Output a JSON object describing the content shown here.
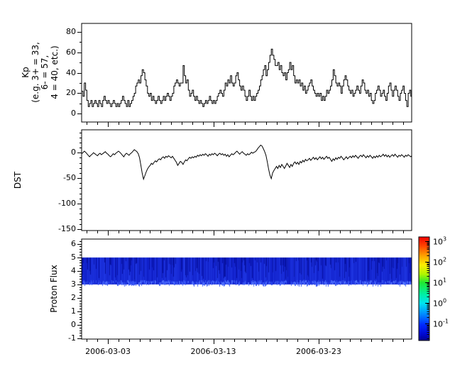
{
  "colors": {
    "line": "#000000",
    "axis": "#000000",
    "background": "#ffffff"
  },
  "x_axis": {
    "epoch": "2006-02-28",
    "domain_days": [
      0.5,
      31.83
    ],
    "major_tick_days": [
      3,
      13,
      23
    ],
    "major_tick_labels": [
      "2006-03-03",
      "2006-03-13",
      "2006-03-23"
    ],
    "minor_step_days": 1
  },
  "chart_data": [
    {
      "id": "kp",
      "type": "bar",
      "style": "step-line",
      "ylabel_lines": [
        "Kp",
        "(e.g. 3+ = 33,",
        "6- = 57,",
        "4 = 40, etc.)"
      ],
      "units": "Kp*10",
      "ylim": [
        -8,
        88
      ],
      "yticks": [
        0,
        20,
        40,
        60,
        80
      ],
      "ytick_labels": [
        "0",
        "20",
        "40",
        "60",
        "80"
      ],
      "yminor_step": 10,
      "x0_day": 0,
      "dt_days": 0.125,
      "values": [
        10,
        13,
        17,
        20,
        22,
        17,
        30,
        23,
        13,
        7,
        10,
        13,
        7,
        10,
        13,
        10,
        7,
        13,
        10,
        7,
        13,
        17,
        13,
        10,
        13,
        10,
        7,
        10,
        13,
        10,
        7,
        10,
        7,
        10,
        13,
        17,
        13,
        10,
        7,
        13,
        7,
        10,
        13,
        17,
        20,
        27,
        30,
        33,
        30,
        37,
        43,
        40,
        33,
        27,
        20,
        17,
        20,
        13,
        17,
        13,
        10,
        13,
        17,
        13,
        10,
        13,
        17,
        13,
        17,
        20,
        17,
        13,
        17,
        20,
        27,
        30,
        33,
        30,
        27,
        30,
        30,
        47,
        37,
        30,
        33,
        23,
        17,
        20,
        23,
        17,
        13,
        17,
        13,
        10,
        13,
        10,
        7,
        10,
        13,
        10,
        13,
        17,
        13,
        10,
        13,
        10,
        13,
        17,
        20,
        23,
        20,
        17,
        23,
        30,
        27,
        33,
        30,
        37,
        30,
        27,
        30,
        37,
        40,
        33,
        27,
        23,
        27,
        23,
        17,
        13,
        17,
        23,
        17,
        13,
        17,
        13,
        17,
        20,
        23,
        27,
        33,
        37,
        43,
        47,
        37,
        43,
        50,
        57,
        63,
        57,
        53,
        47,
        47,
        50,
        43,
        47,
        40,
        37,
        40,
        33,
        40,
        43,
        50,
        43,
        47,
        37,
        30,
        33,
        30,
        33,
        27,
        30,
        23,
        27,
        20,
        23,
        27,
        30,
        33,
        27,
        23,
        20,
        17,
        20,
        17,
        20,
        13,
        17,
        13,
        17,
        23,
        20,
        23,
        27,
        33,
        43,
        37,
        30,
        27,
        30,
        27,
        20,
        27,
        33,
        37,
        33,
        27,
        23,
        20,
        23,
        17,
        20,
        23,
        27,
        23,
        20,
        27,
        33,
        30,
        23,
        20,
        23,
        17,
        20,
        13,
        10,
        13,
        20,
        23,
        27,
        23,
        17,
        20,
        23,
        17,
        13,
        20,
        27,
        30,
        23,
        17,
        23,
        27,
        23,
        17,
        13,
        20,
        23,
        27,
        20,
        13,
        7,
        20,
        23,
        17,
        5
      ]
    },
    {
      "id": "dst",
      "type": "line",
      "ylabel": "DST",
      "ylim": [
        -153,
        45
      ],
      "yticks": [
        0,
        -50,
        -100,
        -150
      ],
      "ytick_labels": [
        "0",
        "-50",
        "-100",
        "-150"
      ],
      "yminor_step": 10,
      "x0_day": 0,
      "dt_days": 0.125,
      "values": [
        2,
        0,
        -3,
        -5,
        -2,
        0,
        3,
        1,
        -2,
        -5,
        -8,
        -5,
        -3,
        0,
        -2,
        -4,
        -6,
        -3,
        -1,
        -4,
        -2,
        0,
        2,
        -1,
        -3,
        -6,
        -8,
        -5,
        -2,
        -4,
        -1,
        1,
        3,
        1,
        -2,
        -5,
        -8,
        -4,
        -1,
        -3,
        -5,
        -2,
        0,
        3,
        6,
        4,
        2,
        -2,
        -10,
        -25,
        -40,
        -52,
        -45,
        -38,
        -32,
        -28,
        -25,
        -21,
        -23,
        -19,
        -16,
        -18,
        -14,
        -12,
        -14,
        -10,
        -8,
        -11,
        -7,
        -9,
        -6,
        -8,
        -10,
        -7,
        -11,
        -15,
        -19,
        -25,
        -21,
        -17,
        -19,
        -23,
        -18,
        -14,
        -16,
        -12,
        -9,
        -11,
        -8,
        -10,
        -7,
        -9,
        -5,
        -7,
        -4,
        -6,
        -3,
        -5,
        -2,
        -4,
        -7,
        -3,
        -5,
        -2,
        -4,
        -1,
        -3,
        -6,
        -3,
        -1,
        -4,
        -2,
        -5,
        -3,
        -7,
        -4,
        -8,
        -5,
        -2,
        -4,
        -2,
        1,
        3,
        0,
        -3,
        0,
        2,
        -1,
        -3,
        -5,
        -2,
        -4,
        -2,
        1,
        -1,
        1,
        2,
        5,
        9,
        12,
        15,
        13,
        8,
        2,
        -5,
        -18,
        -32,
        -44,
        -51,
        -40,
        -35,
        -31,
        -27,
        -31,
        -25,
        -29,
        -23,
        -27,
        -31,
        -26,
        -21,
        -25,
        -29,
        -23,
        -27,
        -21,
        -18,
        -22,
        -19,
        -23,
        -17,
        -20,
        -15,
        -18,
        -13,
        -16,
        -14,
        -11,
        -15,
        -12,
        -9,
        -13,
        -10,
        -14,
        -11,
        -8,
        -12,
        -9,
        -13,
        -10,
        -7,
        -11,
        -9,
        -13,
        -17,
        -12,
        -15,
        -10,
        -13,
        -9,
        -11,
        -7,
        -10,
        -14,
        -11,
        -8,
        -12,
        -9,
        -7,
        -10,
        -6,
        -9,
        -5,
        -8,
        -11,
        -7,
        -5,
        -8,
        -4,
        -7,
        -10,
        -6,
        -9,
        -5,
        -8,
        -11,
        -7,
        -10,
        -6,
        -9,
        -5,
        -8,
        -6,
        -3,
        -7,
        -4,
        -8,
        -5,
        -9,
        -6,
        -4,
        -7,
        -3,
        -6,
        -9,
        -5,
        -7,
        -4,
        -6,
        -9,
        -5,
        -7,
        -4,
        -6,
        -8,
        -5
      ]
    },
    {
      "id": "proton_flux",
      "type": "heatmap",
      "ylabel": "Proton Flux",
      "ylim": [
        -1.05,
        6.35
      ],
      "yticks": [
        -1,
        0,
        1,
        2,
        3,
        4,
        5,
        6
      ],
      "ytick_labels": [
        "-1",
        "0",
        "1",
        "2",
        "3",
        "4",
        "5",
        "6"
      ],
      "yminor_step": 0.2,
      "band": {
        "y_min": 3,
        "y_max": 5,
        "flux_value_range": [
          0.08,
          0.6
        ]
      },
      "band_colors": {
        "base_dark": "#0a16bf",
        "base_light": "#2743f0",
        "streak_dark": "#0813a6",
        "bottom_light": "#5577ff"
      }
    }
  ],
  "colorbar": {
    "scale": "log",
    "range": [
      0.016,
      1585
    ],
    "tick_base": "10",
    "tick_exponents": [
      3,
      2,
      1,
      0,
      -1
    ],
    "colormap": "jet",
    "gradient_top_to_bottom": [
      [
        0.0,
        "#f20000"
      ],
      [
        0.09,
        "#ff4800"
      ],
      [
        0.18,
        "#ffa000"
      ],
      [
        0.27,
        "#fdee00"
      ],
      [
        0.36,
        "#b0f400"
      ],
      [
        0.44,
        "#20e830"
      ],
      [
        0.55,
        "#00f0a0"
      ],
      [
        0.64,
        "#00e4f0"
      ],
      [
        0.74,
        "#0090ff"
      ],
      [
        0.85,
        "#0028ff"
      ],
      [
        0.94,
        "#0008d0"
      ],
      [
        1.0,
        "#000090"
      ]
    ]
  }
}
